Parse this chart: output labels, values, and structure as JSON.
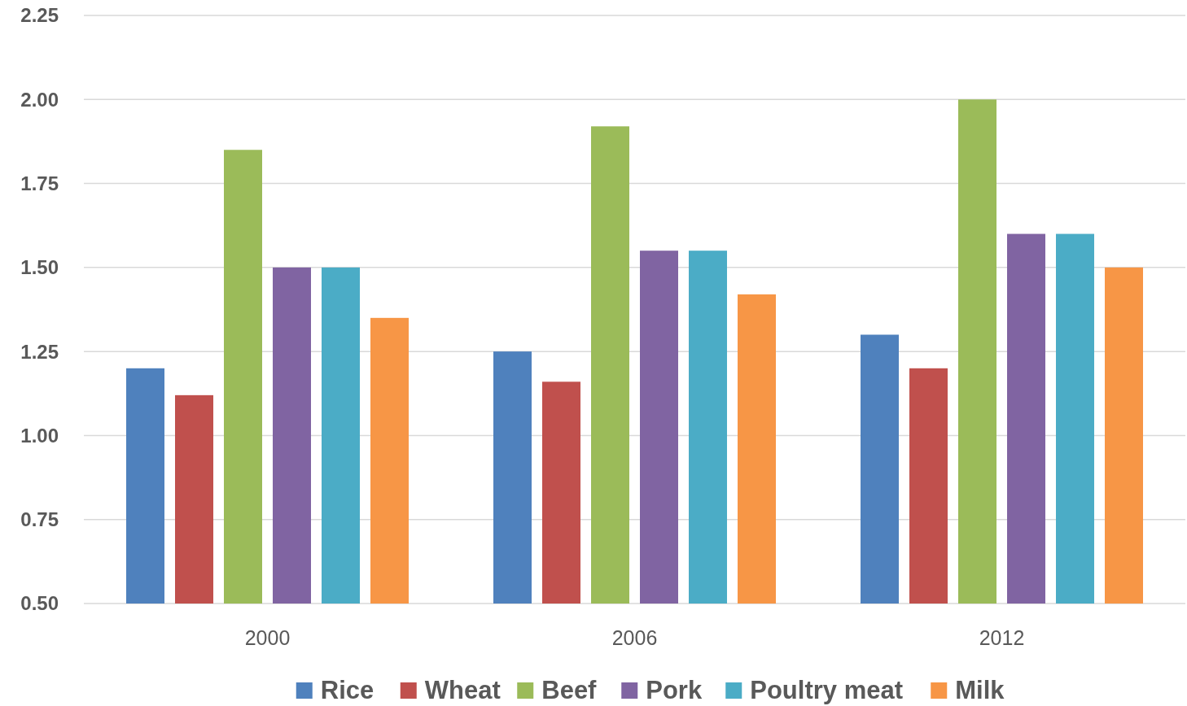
{
  "chart_data": {
    "type": "bar",
    "categories": [
      "2000",
      "2006",
      "2012"
    ],
    "series": [
      {
        "name": "Rice",
        "color": "#4f81bd",
        "values": [
          1.2,
          1.25,
          1.3
        ]
      },
      {
        "name": "Wheat",
        "color": "#c0504d",
        "values": [
          1.12,
          1.16,
          1.2
        ]
      },
      {
        "name": "Beef",
        "color": "#9bbb59",
        "values": [
          1.85,
          1.92,
          2.0
        ]
      },
      {
        "name": "Pork",
        "color": "#8064a2",
        "values": [
          1.5,
          1.55,
          1.6
        ]
      },
      {
        "name": "Poultry meat",
        "color": "#4bacc6",
        "values": [
          1.5,
          1.55,
          1.6
        ]
      },
      {
        "name": "Milk",
        "color": "#f79646",
        "values": [
          1.35,
          1.42,
          1.5
        ]
      }
    ],
    "ylim": [
      0.5,
      2.25
    ],
    "yticks": [
      {
        "value": 0.5,
        "label": "0.50"
      },
      {
        "value": 0.75,
        "label": "0.75"
      },
      {
        "value": 1.0,
        "label": "1.00"
      },
      {
        "value": 1.25,
        "label": "1.25"
      },
      {
        "value": 1.5,
        "label": "1.50"
      },
      {
        "value": 1.75,
        "label": "1.75"
      },
      {
        "value": 2.0,
        "label": "2.00"
      },
      {
        "value": 2.25,
        "label": "2.25"
      }
    ],
    "grid": "y",
    "legend": "bottom"
  }
}
